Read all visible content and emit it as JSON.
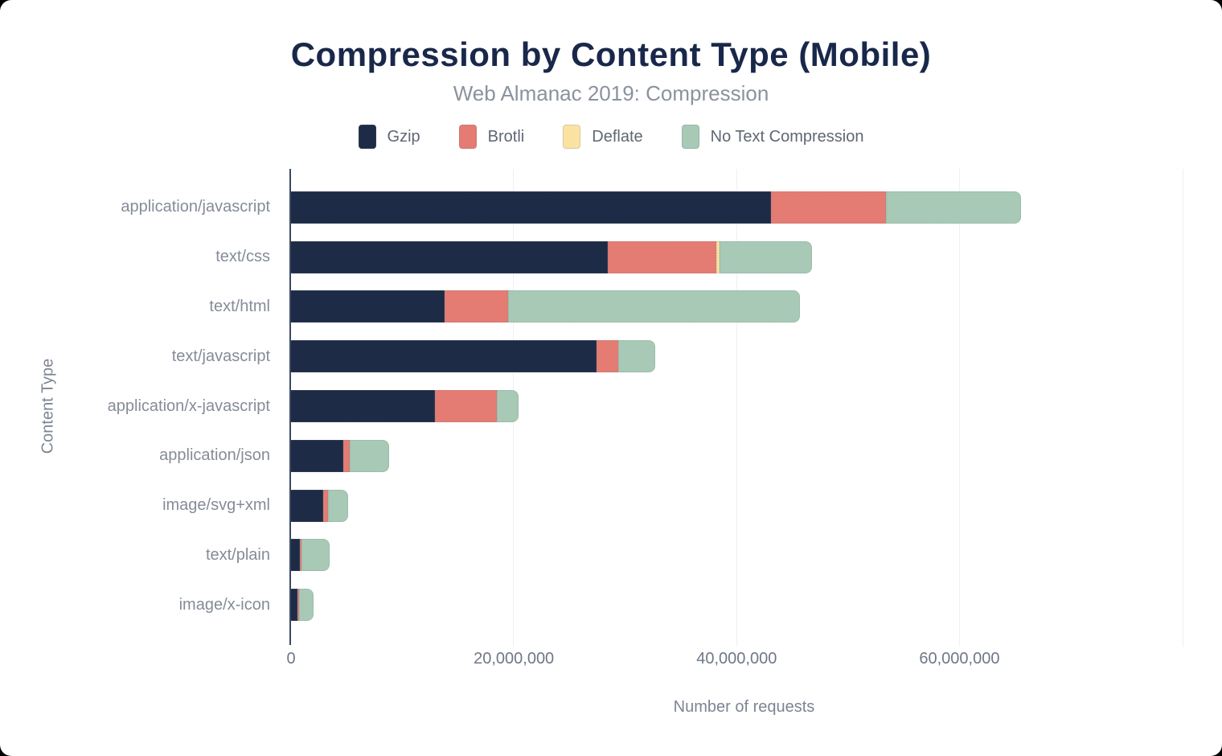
{
  "page": {
    "background_color": "#000000",
    "card_color": "#ffffff"
  },
  "colors": {
    "title": "#19284a",
    "subtitle": "#8b929e",
    "legend_text": "#5e6774",
    "y_label_text": "#858c98",
    "x_tick_text": "#6f7787",
    "axis_title_text": "#7d8593",
    "gridline": "#eef0f2",
    "axis_line": "#3b4964"
  },
  "chart_data": {
    "type": "bar",
    "orientation": "horizontal",
    "stacked": true,
    "title": "Compression by Content Type (Mobile)",
    "subtitle": "Web Almanac 2019: Compression",
    "xlabel": "Number of requests",
    "ylabel": "Content Type",
    "xlim": [
      0,
      81400000
    ],
    "grid": true,
    "gridline_values": [
      20000000,
      40000000,
      60000000,
      80000000
    ],
    "xticks": [
      0,
      20000000,
      40000000,
      60000000
    ],
    "xtick_labels": [
      "0",
      "20,000,000",
      "40,000,000",
      "60,000,000"
    ],
    "legend_position": "top",
    "categories": [
      "application/javascript",
      "text/css",
      "text/html",
      "text/javascript",
      "application/x-javascript",
      "application/json",
      "image/svg+xml",
      "text/plain",
      "image/x-icon"
    ],
    "series": [
      {
        "name": "Gzip",
        "color": "#1d2b47",
        "values": [
          43100000,
          28400000,
          13800000,
          27400000,
          12900000,
          4700000,
          2900000,
          770000,
          560000
        ]
      },
      {
        "name": "Brotli",
        "color": "#e47c73",
        "values": [
          10300000,
          9800000,
          5700000,
          2000000,
          5600000,
          600000,
          400000,
          190000,
          170000
        ]
      },
      {
        "name": "Deflate",
        "color": "#fae3a2",
        "values": [
          0,
          250000,
          0,
          0,
          0,
          0,
          0,
          0,
          0
        ]
      },
      {
        "name": "No Text Compression",
        "color": "#a7c9b6",
        "values": [
          12100000,
          8300000,
          26200000,
          3300000,
          1900000,
          3500000,
          1800000,
          2500000,
          1300000
        ]
      }
    ]
  }
}
